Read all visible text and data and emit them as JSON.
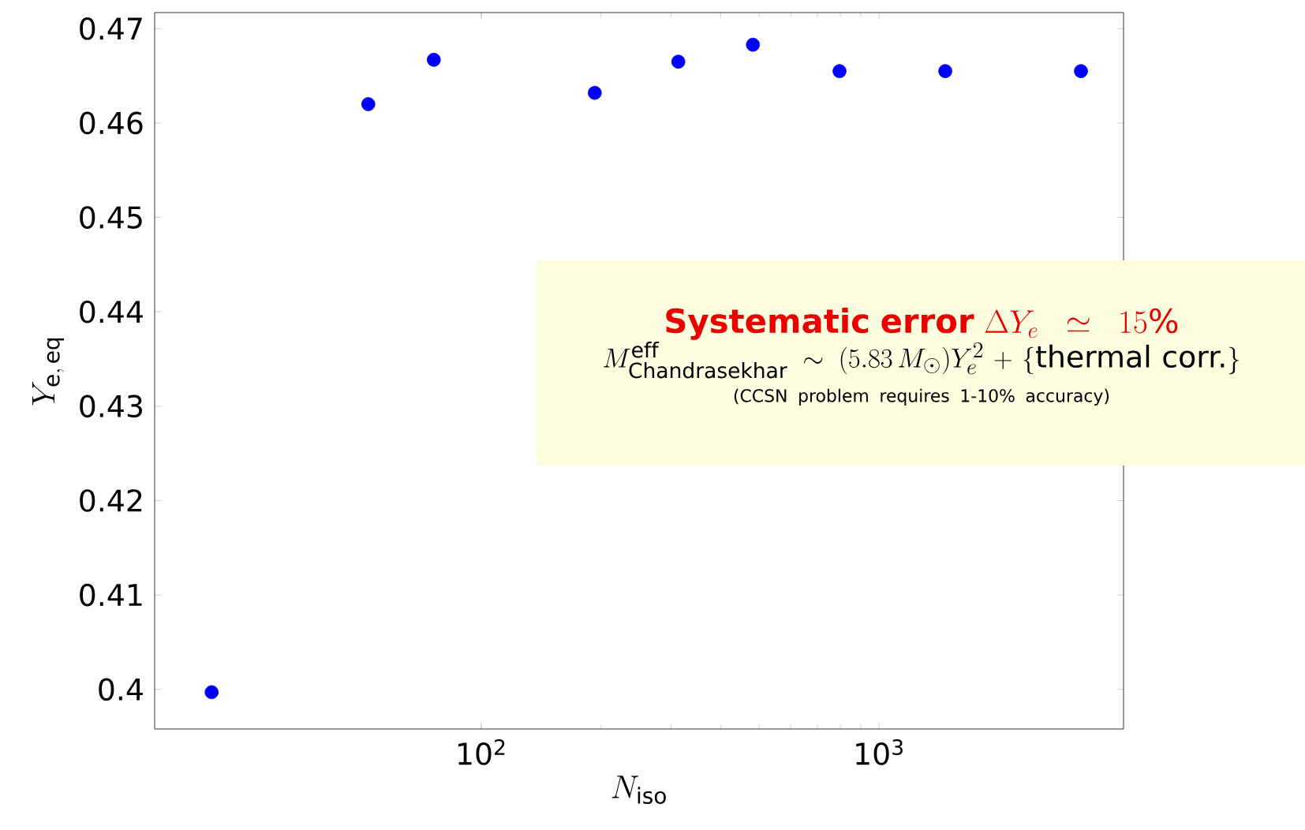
{
  "chart_data": {
    "type": "scatter",
    "xlabel": "N_{\\mathrm{iso}}",
    "ylabel": "Y_{\\mathrm{e,\\,eq}}",
    "x": [
      21,
      52,
      76,
      193,
      313,
      482,
      796,
      1468,
      3220
    ],
    "series": [
      {
        "color": "#0000ff",
        "values": [
          0.3997,
          0.462,
          0.4667,
          0.4632,
          0.4665,
          0.4683,
          0.4655,
          0.4655,
          0.4655
        ]
      }
    ],
    "log": "x",
    "xlim": [
      15.1,
      4120
    ],
    "ylim": [
      0.3958,
      0.4717
    ],
    "xticks": [
      {
        "value": 100,
        "label": "10$^{2}$"
      },
      {
        "value": 1000,
        "label": "10$^{3}$"
      }
    ],
    "yticks": [
      0.4,
      0.41,
      0.42,
      0.43,
      0.44,
      0.45,
      0.46,
      0.47
    ],
    "marker": "circle",
    "grid": false,
    "annotations": [
      "\\text{\\textbf{Systematic error}}\\ \\Delta Y_e \\simeq 15\\%",
      "M^{\\mathrm{eff}}_{\\mathrm{Chandrasekhar}} \\sim (5.83\\,M_{\\odot})Y_e^2 + \\{\\text{thermal corr.}\\}",
      "(CCSN problem requires 1-10% accuracy)"
    ]
  }
}
